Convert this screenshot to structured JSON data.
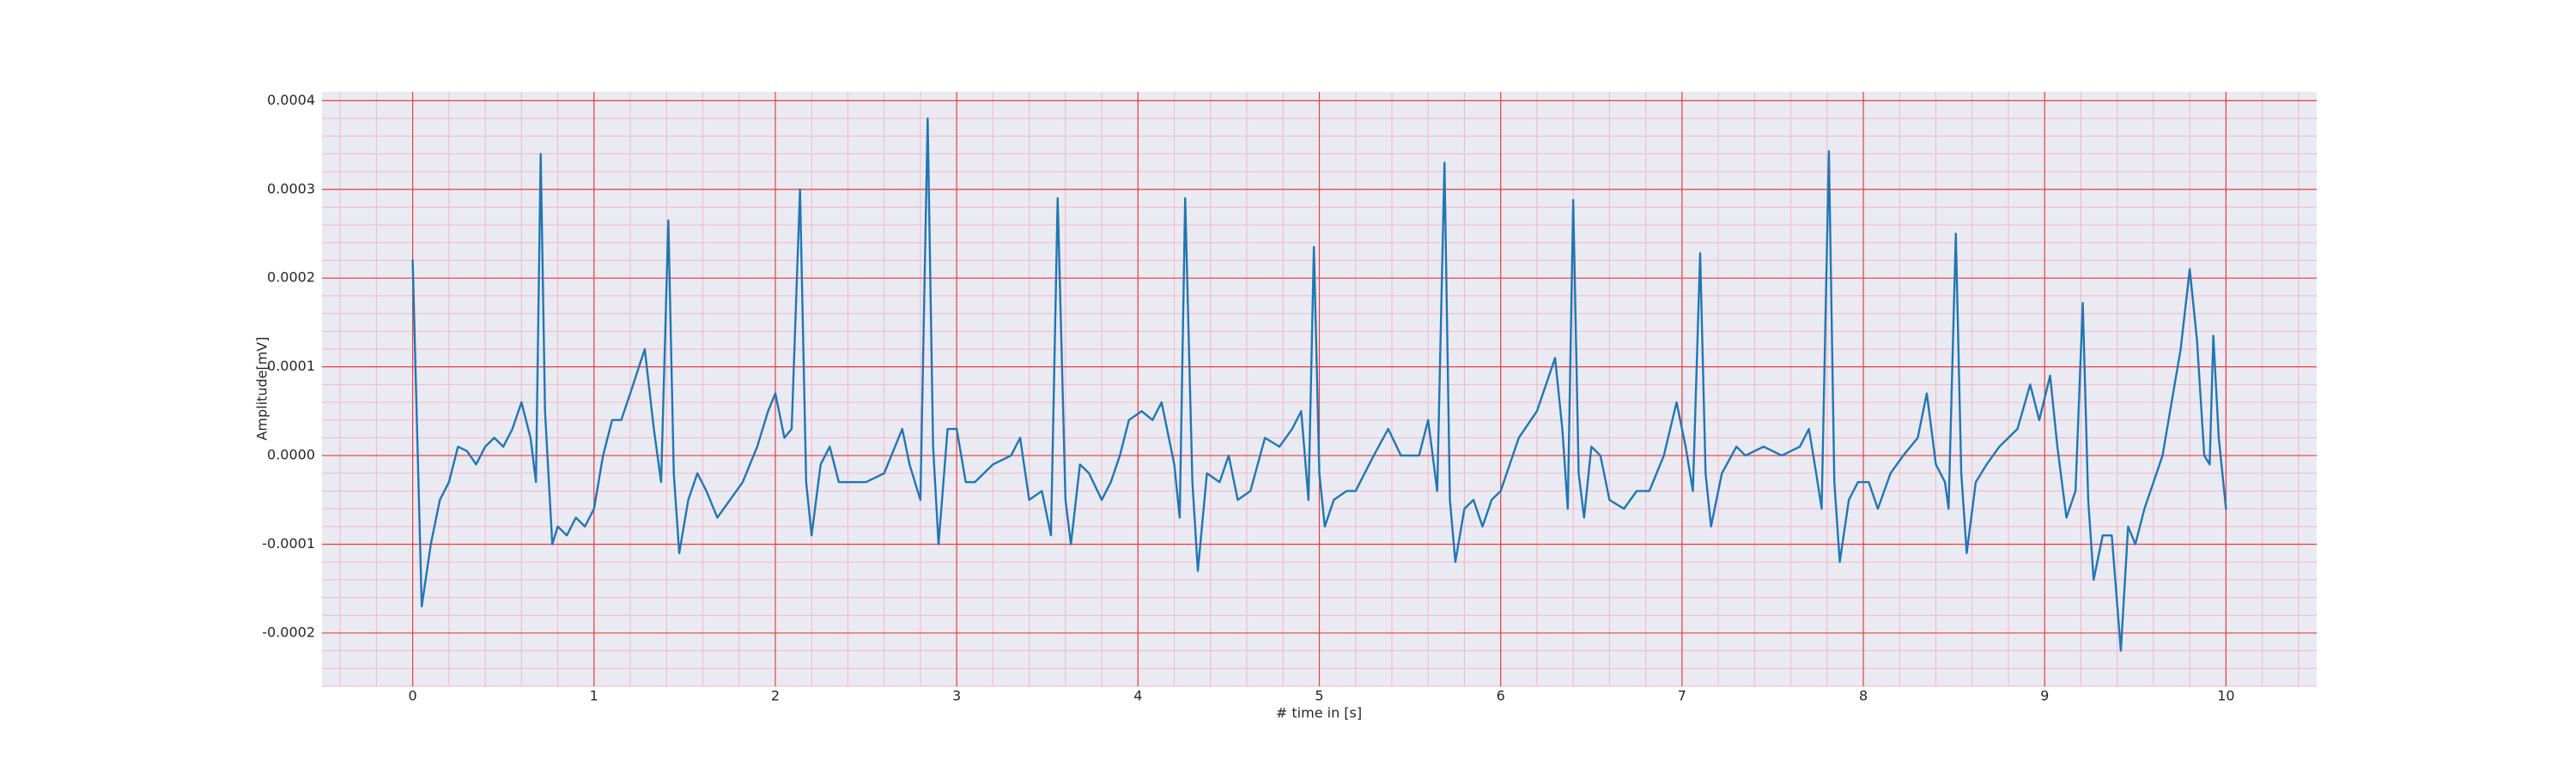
{
  "chart_data": {
    "type": "line",
    "xlabel": "# time in [s]",
    "ylabel": "Amplitude[mV]",
    "xlim": [
      -0.5,
      10.5
    ],
    "ylim": [
      -0.00026,
      0.00041
    ],
    "xticks": [
      0,
      1,
      2,
      3,
      4,
      5,
      6,
      7,
      8,
      9,
      10
    ],
    "yticks": [
      -0.0002,
      -0.0001,
      {
        "value": 0,
        "label": "0.0000"
      },
      0.0001,
      0.0002,
      0.0003,
      0.0004
    ],
    "grid": true,
    "minor_divisions": 5,
    "x": [
      0,
      0.05,
      0.1,
      0.15,
      0.2,
      0.25,
      0.3,
      0.35,
      0.4,
      0.45,
      0.5,
      0.55,
      0.6,
      0.65,
      0.68,
      0.706,
      0.73,
      0.77,
      0.8,
      0.85,
      0.9,
      0.95,
      1.0,
      1.05,
      1.1,
      1.15,
      1.2,
      1.28,
      1.33,
      1.37,
      1.41,
      1.44,
      1.47,
      1.52,
      1.57,
      1.62,
      1.68,
      1.75,
      1.82,
      1.9,
      1.96,
      2.0,
      2.05,
      2.09,
      2.136,
      2.17,
      2.2,
      2.25,
      2.3,
      2.35,
      2.4,
      2.5,
      2.6,
      2.7,
      2.74,
      2.8,
      2.84,
      2.87,
      2.9,
      2.95,
      3.0,
      3.05,
      3.1,
      3.2,
      3.3,
      3.35,
      3.4,
      3.47,
      3.52,
      3.557,
      3.6,
      3.63,
      3.68,
      3.73,
      3.8,
      3.85,
      3.9,
      3.95,
      4.02,
      4.08,
      4.13,
      4.2,
      4.23,
      4.26,
      4.3,
      4.33,
      4.38,
      4.45,
      4.5,
      4.55,
      4.62,
      4.7,
      4.78,
      4.85,
      4.9,
      4.94,
      4.97,
      5.0,
      5.03,
      5.08,
      5.15,
      5.2,
      5.3,
      5.38,
      5.45,
      5.5,
      5.55,
      5.6,
      5.65,
      5.69,
      5.72,
      5.75,
      5.8,
      5.85,
      5.9,
      5.95,
      6.0,
      6.1,
      6.2,
      6.3,
      6.34,
      6.37,
      6.4,
      6.43,
      6.46,
      6.5,
      6.55,
      6.6,
      6.68,
      6.75,
      6.82,
      6.9,
      6.97,
      7.02,
      7.06,
      7.1,
      7.13,
      7.16,
      7.22,
      7.3,
      7.35,
      7.45,
      7.55,
      7.65,
      7.7,
      7.74,
      7.77,
      7.81,
      7.84,
      7.87,
      7.92,
      7.97,
      8.03,
      8.08,
      8.15,
      8.22,
      8.3,
      8.35,
      8.4,
      8.45,
      8.47,
      8.51,
      8.54,
      8.57,
      8.62,
      8.68,
      8.75,
      8.85,
      8.92,
      8.97,
      9.03,
      9.07,
      9.12,
      9.17,
      9.21,
      9.24,
      9.27,
      9.32,
      9.37,
      9.42,
      9.46,
      9.5,
      9.55,
      9.6,
      9.65,
      9.7,
      9.75,
      9.8,
      9.84,
      9.88,
      9.91,
      9.93,
      9.96,
      10.0
    ],
    "series": [
      {
        "color": "#1f77b4",
        "values": [
          0.00022,
          -0.00017,
          -0.0001,
          -5e-05,
          -3e-05,
          1e-05,
          5e-06,
          -1e-05,
          1e-05,
          2e-05,
          1e-05,
          3e-05,
          6e-05,
          2e-05,
          -3e-05,
          0.00034,
          5e-05,
          -0.0001,
          -8e-05,
          -9e-05,
          -7e-05,
          -8e-05,
          -6e-05,
          0,
          4e-05,
          4e-05,
          7e-05,
          0.00012,
          3e-05,
          -3e-05,
          0.000265,
          -2e-05,
          -0.00011,
          -5e-05,
          -2e-05,
          -4e-05,
          -7e-05,
          -5e-05,
          -3e-05,
          1e-05,
          5e-05,
          7e-05,
          2e-05,
          3e-05,
          0.0003,
          -3e-05,
          -9e-05,
          -1e-05,
          1e-05,
          -3e-05,
          -3e-05,
          -3e-05,
          -2e-05,
          3e-05,
          -1e-05,
          -5e-05,
          0.00038,
          1e-05,
          -0.0001,
          3e-05,
          3e-05,
          -3e-05,
          -3e-05,
          -1e-05,
          0,
          2e-05,
          -5e-05,
          -4e-05,
          -9e-05,
          0.00029,
          -5e-05,
          -0.0001,
          -1e-05,
          -2e-05,
          -5e-05,
          -3e-05,
          0,
          4e-05,
          5e-05,
          4e-05,
          6e-05,
          -1e-05,
          -7e-05,
          0.00029,
          -3e-05,
          -0.00013,
          -2e-05,
          -3e-05,
          0,
          -5e-05,
          -4e-05,
          2e-05,
          1e-05,
          3e-05,
          5e-05,
          -5e-05,
          0.000235,
          -2e-05,
          -8e-05,
          -5e-05,
          -4e-05,
          -4e-05,
          0,
          3e-05,
          0,
          0,
          0,
          4e-05,
          -4e-05,
          0.00033,
          -5e-05,
          -0.00012,
          -6e-05,
          -5e-05,
          -8e-05,
          -5e-05,
          -4e-05,
          2e-05,
          5e-05,
          0.00011,
          3e-05,
          -6e-05,
          0.000288,
          -2e-05,
          -7e-05,
          1e-05,
          0,
          -5e-05,
          -6e-05,
          -4e-05,
          -4e-05,
          0,
          6e-05,
          1e-05,
          -4e-05,
          0.000228,
          -2e-05,
          -8e-05,
          -2e-05,
          1e-05,
          0,
          1e-05,
          0,
          1e-05,
          3e-05,
          -2e-05,
          -6e-05,
          0.000343,
          -3e-05,
          -0.00012,
          -5e-05,
          -3e-05,
          -3e-05,
          -6e-05,
          -2e-05,
          0,
          2e-05,
          7e-05,
          -1e-05,
          -3e-05,
          -6e-05,
          0.00025,
          -2e-05,
          -0.00011,
          -3e-05,
          -1e-05,
          1e-05,
          3e-05,
          8e-05,
          4e-05,
          9e-05,
          1e-05,
          -7e-05,
          -4e-05,
          0.000172,
          -5e-05,
          -0.00014,
          -9e-05,
          -9e-05,
          -0.00022,
          -8e-05,
          -0.0001,
          -6e-05,
          -3e-05,
          0,
          6e-05,
          0.00012,
          0.00021,
          0.00013,
          0,
          -1e-05,
          0.000135,
          2e-05,
          -6e-05
        ]
      }
    ]
  }
}
